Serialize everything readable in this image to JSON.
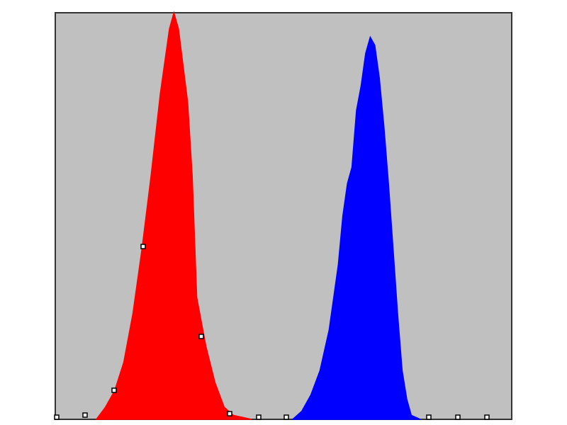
{
  "chart_data": {
    "type": "area",
    "xlim": [
      0,
      100
    ],
    "ylim": [
      0,
      100
    ],
    "series": [
      {
        "color": "#ff0000",
        "x": [
          9,
          11,
          13,
          15,
          17,
          19,
          21,
          23,
          25,
          26,
          27,
          29,
          30,
          31,
          33,
          35,
          37,
          39,
          41,
          43
        ],
        "values": [
          0,
          3,
          7,
          14,
          26,
          42,
          60,
          80,
          96,
          100,
          96,
          78,
          60,
          30,
          18,
          9,
          3,
          1,
          0.5,
          0
        ]
      },
      {
        "color": "#0000ff",
        "x": [
          52,
          54,
          56,
          58,
          60,
          62,
          63,
          64,
          65,
          66,
          67,
          68,
          69,
          70,
          71,
          72,
          73,
          74,
          75,
          76,
          77,
          78,
          80
        ],
        "values": [
          0,
          2,
          6,
          12,
          22,
          38,
          50,
          58,
          62,
          76,
          82,
          90,
          94,
          92,
          84,
          72,
          58,
          42,
          26,
          12,
          5,
          1,
          0
        ]
      }
    ]
  }
}
